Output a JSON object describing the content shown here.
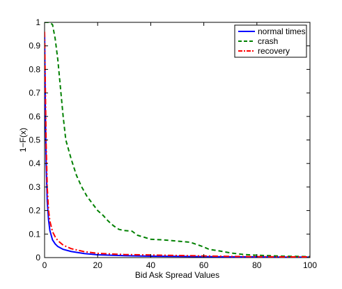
{
  "chart_data": {
    "type": "line",
    "xlabel": "Bid Ask Spread Values",
    "ylabel": "1−F(x)",
    "xlim": [
      0,
      100
    ],
    "ylim": [
      0,
      1
    ],
    "xticks": [
      0,
      20,
      40,
      60,
      80,
      100
    ],
    "yticks": [
      0,
      0.1,
      0.2,
      0.3,
      0.4,
      0.5,
      0.6,
      0.7,
      0.8,
      0.9,
      1
    ],
    "xtick_labels": [
      "0",
      "20",
      "40",
      "60",
      "80",
      "100"
    ],
    "ytick_labels": [
      "0",
      "0.1",
      "0.2",
      "0.3",
      "0.4",
      "0.5",
      "0.6",
      "0.7",
      "0.8",
      "0.9",
      "1"
    ],
    "grid": false,
    "legend_position": "top-right",
    "series": [
      {
        "name": "normal times",
        "color": "#0000ff",
        "dash": "solid",
        "x": [
          0,
          0.3,
          0.6,
          1,
          1.5,
          2,
          3,
          4,
          5,
          7,
          10,
          15,
          20,
          30,
          40,
          50,
          60,
          70,
          80,
          90,
          100
        ],
        "y": [
          0.96,
          0.62,
          0.4,
          0.24,
          0.16,
          0.115,
          0.075,
          0.058,
          0.047,
          0.035,
          0.026,
          0.017,
          0.012,
          0.008,
          0.006,
          0.005,
          0.004,
          0.003,
          0.003,
          0.002,
          0.002
        ]
      },
      {
        "name": "crash",
        "color": "#008000",
        "dash": "dashed",
        "x": [
          0,
          2,
          3,
          4,
          5,
          6,
          7,
          8,
          10,
          12,
          14,
          16,
          18,
          20,
          22,
          24,
          26,
          28,
          30,
          33,
          35,
          40,
          45,
          50,
          55,
          60,
          62,
          65,
          70,
          75,
          80,
          85,
          90,
          95,
          100
        ],
        "y": [
          1,
          1,
          0.99,
          0.93,
          0.84,
          0.72,
          0.6,
          0.5,
          0.42,
          0.35,
          0.3,
          0.26,
          0.23,
          0.2,
          0.18,
          0.155,
          0.135,
          0.12,
          0.115,
          0.112,
          0.095,
          0.078,
          0.075,
          0.07,
          0.065,
          0.045,
          0.035,
          0.03,
          0.02,
          0.013,
          0.01,
          0.008,
          0.006,
          0.005,
          0.004
        ]
      },
      {
        "name": "recovery",
        "color": "#ff0000",
        "dash": "dashdot",
        "x": [
          0,
          0.3,
          0.6,
          1,
          1.5,
          2,
          3,
          4,
          5,
          7,
          10,
          15,
          20,
          30,
          40,
          50,
          60,
          70,
          80,
          90,
          100
        ],
        "y": [
          0.96,
          0.72,
          0.48,
          0.3,
          0.2,
          0.155,
          0.11,
          0.088,
          0.072,
          0.053,
          0.038,
          0.025,
          0.018,
          0.013,
          0.011,
          0.009,
          0.007,
          0.005,
          0.004,
          0.003,
          0.003
        ]
      }
    ]
  }
}
